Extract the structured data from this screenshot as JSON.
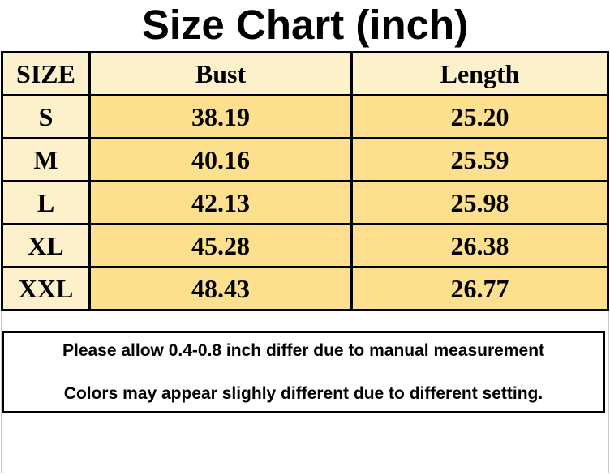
{
  "title": "Size Chart (inch)",
  "table": {
    "columns": [
      "SIZE",
      "Bust",
      "Length"
    ],
    "rows": [
      {
        "size": "S",
        "bust": "38.19",
        "length": "25.20"
      },
      {
        "size": "M",
        "bust": "40.16",
        "length": "25.59"
      },
      {
        "size": "L",
        "bust": "42.13",
        "length": "25.98"
      },
      {
        "size": "XL",
        "bust": "45.28",
        "length": "26.38"
      },
      {
        "size": "XXL",
        "bust": "48.43",
        "length": "26.77"
      }
    ]
  },
  "notes": {
    "measurement": "Please allow 0.4-0.8 inch differ due to manual measurement",
    "colors": "Colors may appear slighly different due to different setting."
  },
  "colors": {
    "header_bg": "#fdf1cb",
    "size_column_bg": "#fdf1cb",
    "value_cell_bg": "#fce08e",
    "table_border": "#000000",
    "frame_border": "#c9c9c9",
    "text": "#000000",
    "background": "#ffffff"
  }
}
